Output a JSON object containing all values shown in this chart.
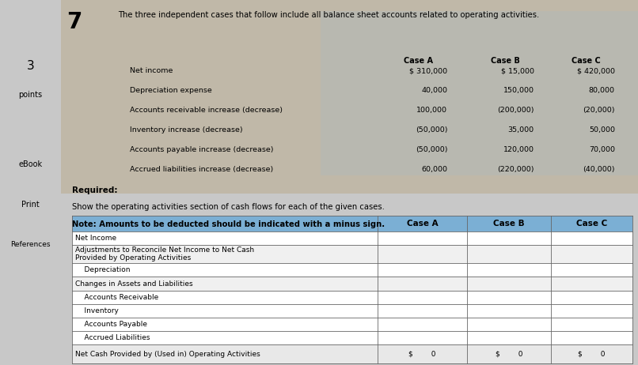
{
  "title_number": "7",
  "title_text": "The three independent cases that follow include all balance sheet accounts related to operating activities.",
  "given_rows": [
    "Net income",
    "Depreciation expense",
    "Accounts receivable increase (decrease)",
    "Inventory increase (decrease)",
    "Accounts payable increase (decrease)",
    "Accrued liabilities increase (decrease)"
  ],
  "given_case_a": [
    "$ 310,000",
    "40,000",
    "100,000",
    "(50,000)",
    "(50,000)",
    "60,000"
  ],
  "given_case_b": [
    "$ 15,000",
    "150,000",
    "(200,000)",
    "35,000",
    "120,000",
    "(220,000)"
  ],
  "given_case_c": [
    "$ 420,000",
    "80,000",
    "(20,000)",
    "50,000",
    "70,000",
    "(40,000)"
  ],
  "required_text": "Required:",
  "instruction_text": "Show the operating activities section of cash flows for each of the given cases.",
  "note_text": "Note: Amounts to be deducted should be indicated with a minus sign.",
  "table_rows": [
    [
      "Net Income",
      "",
      "",
      ""
    ],
    [
      "Adjustments to Reconcile Net Income to Net Cash\nProvided by Operating Activities",
      "",
      "",
      ""
    ],
    [
      "    Depreciation",
      "",
      "",
      ""
    ],
    [
      "Changes in Assets and Liabilities",
      "",
      "",
      ""
    ],
    [
      "    Accounts Receivable",
      "",
      "",
      ""
    ],
    [
      "    Inventory",
      "",
      "",
      ""
    ],
    [
      "    Accounts Payable",
      "",
      "",
      ""
    ],
    [
      "    Accrued Liabilities",
      "",
      "",
      ""
    ],
    [
      "Net Cash Provided by (Used in) Operating Activities",
      "$        0",
      "$        0",
      "$        0"
    ]
  ],
  "header_bg_color": "#7BAFD4",
  "grid_color": "#666666",
  "background_color": "#C8C8C8",
  "top_bg_color": "#BEBEBE",
  "data_area_bg": "#D8D8D0",
  "sidebar_color": "#C0C0C0",
  "white": "#FFFFFF",
  "light_gray": "#F0F0F0",
  "medium_gray": "#E8E8E8"
}
